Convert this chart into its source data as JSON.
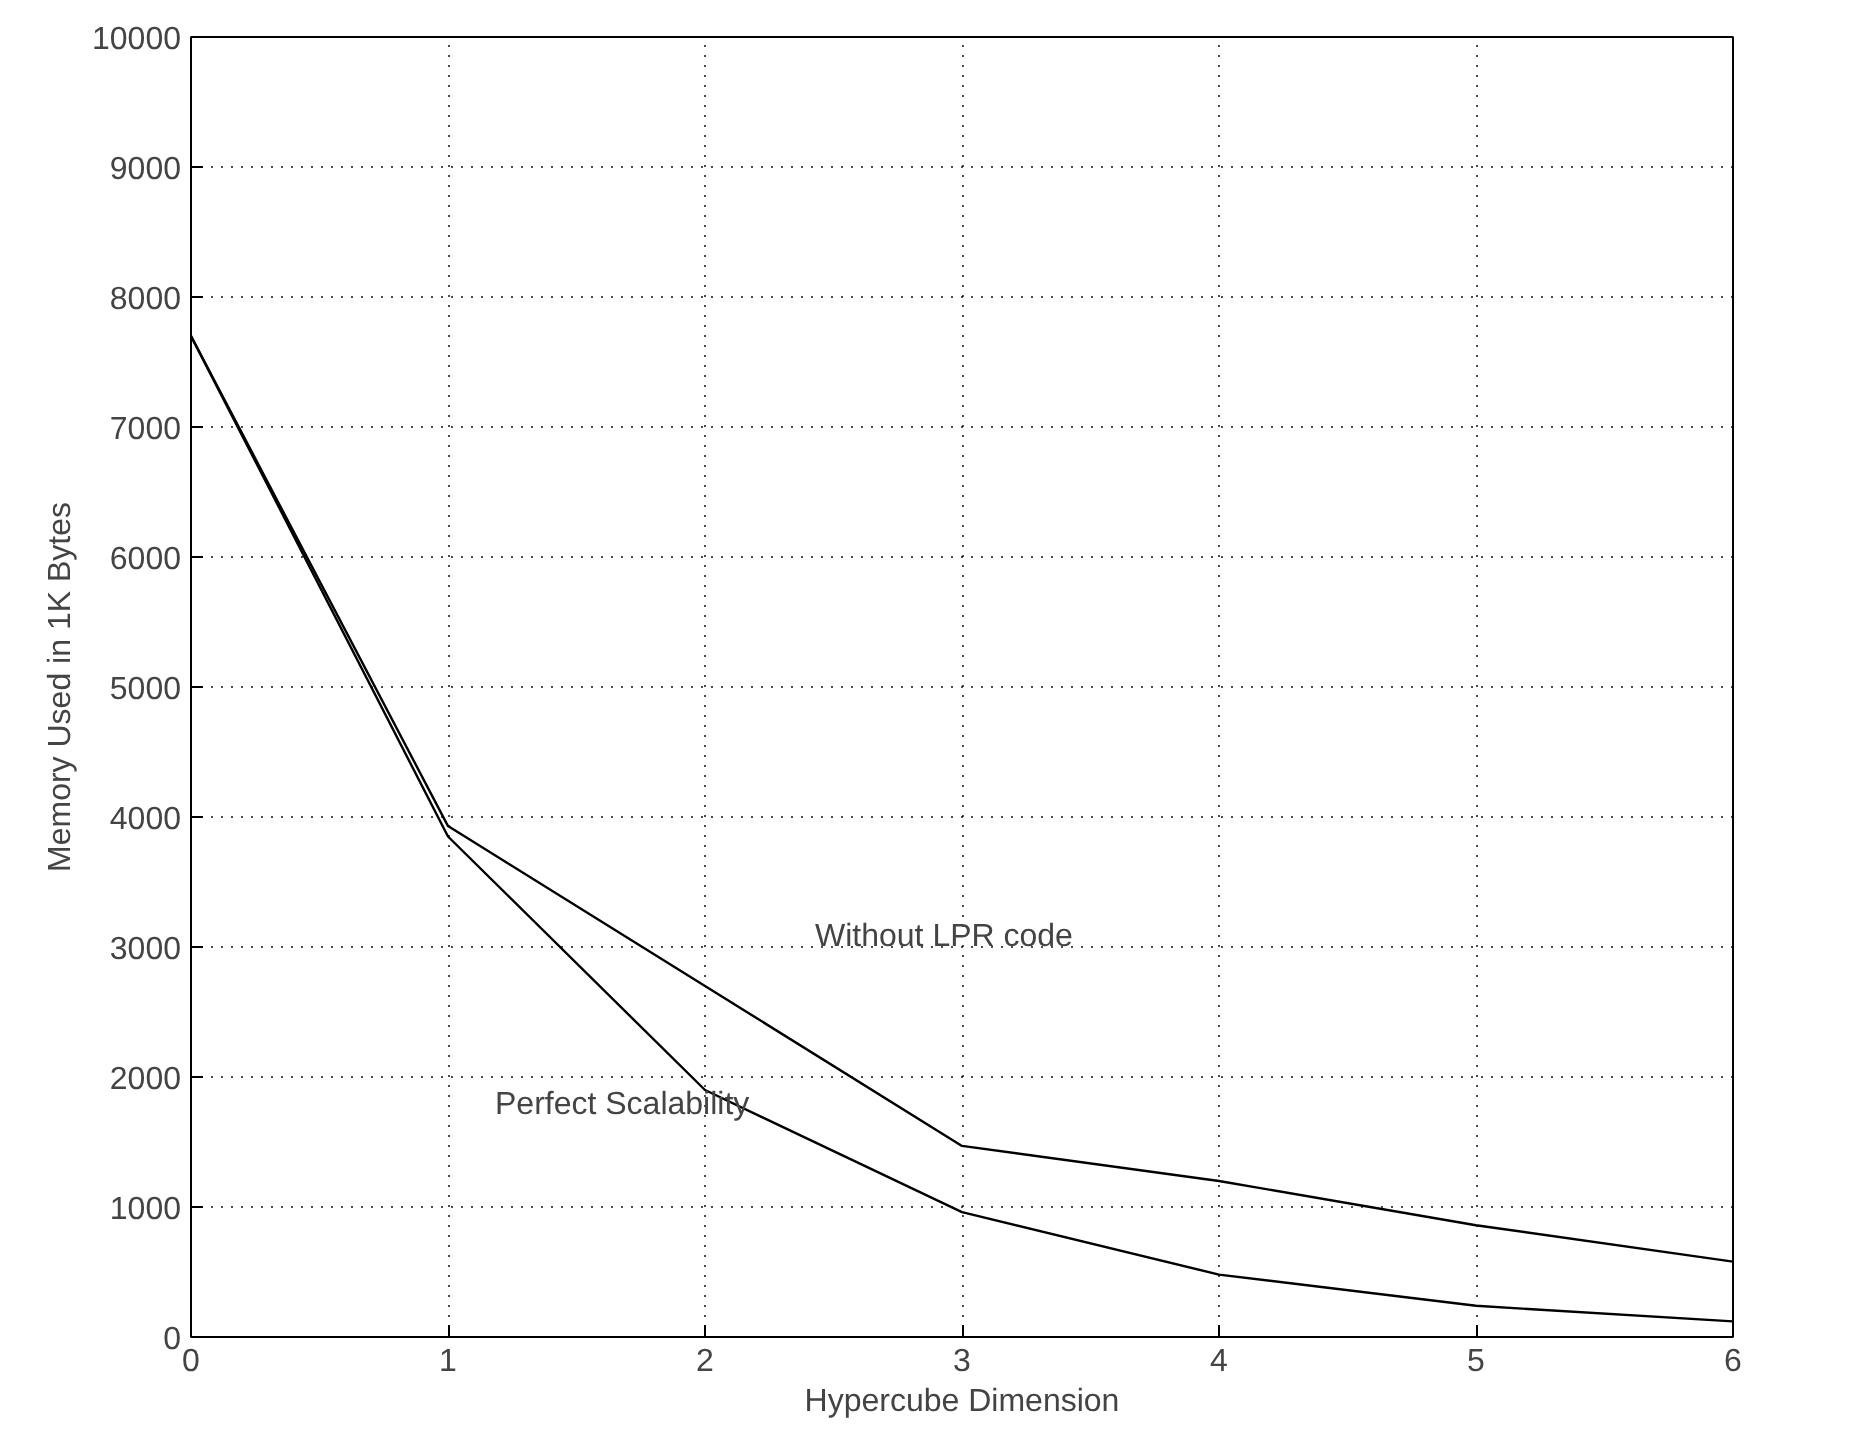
{
  "chart_data": {
    "type": "line",
    "xlabel": "Hypercube Dimension",
    "ylabel": "Memory Used in 1K Bytes",
    "x": [
      0,
      1,
      2,
      3,
      4,
      5,
      6
    ],
    "series": [
      {
        "color": "#000000",
        "values": [
          7700,
          3930,
          2700,
          1470,
          1200,
          860,
          580
        ]
      },
      {
        "color": "#000000",
        "values": [
          7700,
          3850,
          1900,
          960,
          480,
          240,
          120
        ]
      }
    ],
    "annotations": [
      "Without LPR code",
      "Perfect Scalability"
    ],
    "xlim": [
      0,
      6
    ],
    "xticks": [
      0,
      1,
      2,
      3,
      4,
      5,
      6
    ],
    "ylim": [
      0,
      10000
    ],
    "yticks": [
      0,
      1000,
      2000,
      3000,
      4000,
      5000,
      6000,
      7000,
      8000,
      9000,
      10000
    ],
    "grid": true,
    "line_style": "solid",
    "marker": "none"
  }
}
